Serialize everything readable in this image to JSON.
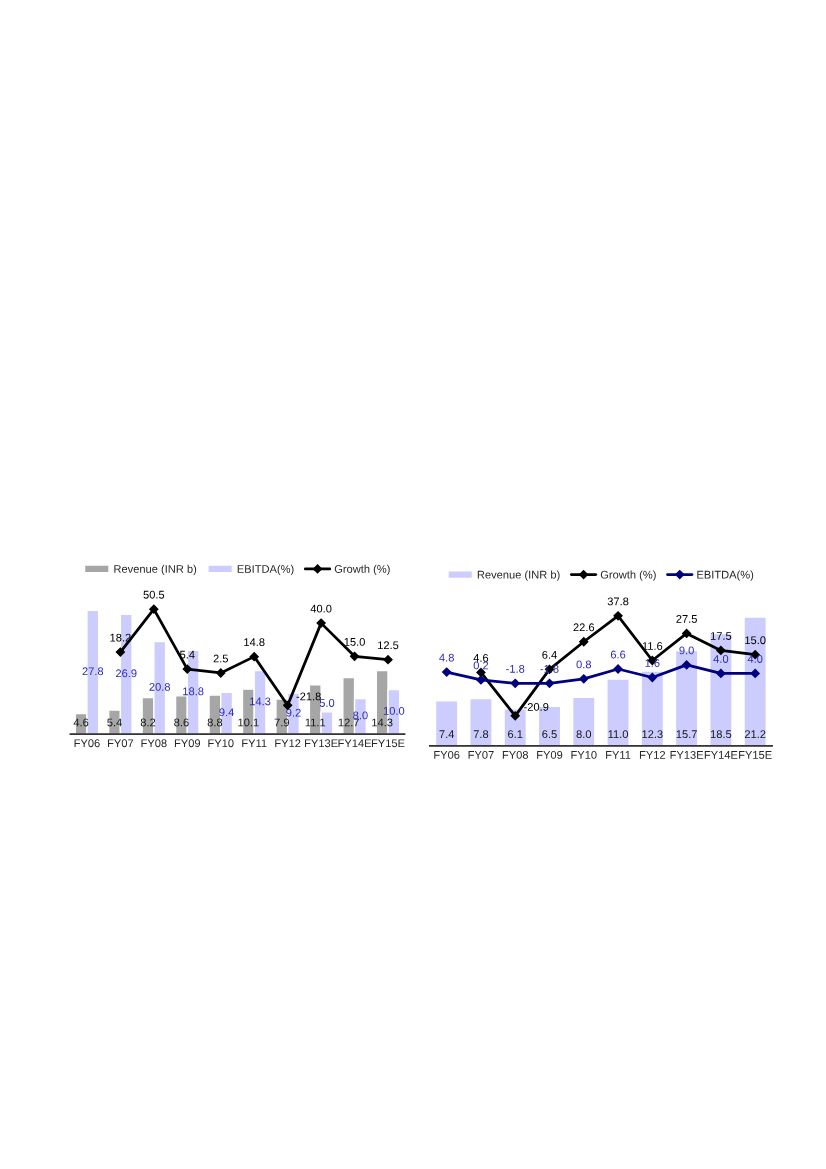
{
  "chart_data": [
    {
      "type": "bar",
      "categories": [
        "FY06",
        "FY07",
        "FY08",
        "FY09",
        "FY10",
        "FY11",
        "FY12",
        "FY13E",
        "FY14E",
        "FY15E"
      ],
      "legend": "top",
      "marker": "diamond",
      "tick_labels": "x",
      "grid": false,
      "series": [
        {
          "name": "Revenue (INR b)",
          "color": "#a6a6a6",
          "values": [
            4.6,
            5.4,
            8.2,
            8.6,
            8.8,
            10.1,
            7.9,
            11.1,
            12.7,
            14.3
          ],
          "value_labels": [
            "4.6",
            "5.4",
            "8.2",
            "8.6",
            "8.8",
            "10.1",
            "7.9",
            "11.1",
            "12.7",
            "14.3"
          ]
        },
        {
          "name": "EBITDA(%)",
          "color": "#ccccff",
          "values": [
            27.8,
            26.9,
            20.8,
            18.8,
            9.4,
            14.3,
            9.2,
            5.0,
            8.0,
            10.0
          ],
          "value_labels": [
            "27.8",
            "26.9",
            "20.8",
            "18.8",
            "9.4",
            "14.3",
            "9.2",
            "5.0",
            "8.0",
            "10.0"
          ]
        },
        {
          "name": "Growth (%)",
          "type": "line",
          "axis": "y2",
          "color": "#000000",
          "values": [
            null,
            18.2,
            50.5,
            5.4,
            2.5,
            14.8,
            -21.8,
            40.0,
            15.0,
            12.5
          ],
          "value_labels": [
            null,
            "18.2",
            "50.5",
            "5.4",
            "2.5",
            "14.8",
            "-21.8",
            "40.0",
            "15.0",
            "12.5"
          ]
        }
      ]
    },
    {
      "type": "bar",
      "categories": [
        "FY06",
        "FY07",
        "FY08",
        "FY09",
        "FY10",
        "FY11",
        "FY12",
        "FY13E",
        "FY14E",
        "FY15E"
      ],
      "legend": "top",
      "marker": "diamond",
      "tick_labels": "x",
      "grid": false,
      "series": [
        {
          "name": "Revenue (INR b)",
          "color": "#ccccff",
          "values": [
            7.4,
            7.8,
            6.1,
            6.5,
            8.0,
            11.0,
            12.3,
            15.7,
            18.5,
            21.2
          ],
          "value_labels": [
            "7.4",
            "7.8",
            "6.1",
            "6.5",
            "8.0",
            "11.0",
            "12.3",
            "15.7",
            "18.5",
            "21.2"
          ]
        },
        {
          "name": "Growth (%)",
          "type": "line",
          "axis": "y2",
          "color": "#000000",
          "values": [
            null,
            4.6,
            -20.9,
            6.4,
            22.6,
            37.8,
            11.6,
            27.5,
            17.5,
            15.0
          ],
          "value_labels": [
            null,
            "4.6",
            "-20.9",
            "6.4",
            "22.6",
            "37.8",
            "11.6",
            "27.5",
            "17.5",
            "15.0"
          ]
        },
        {
          "name": "EBITDA(%)",
          "type": "line",
          "axis": "y2",
          "color": "#000080",
          "values": [
            4.8,
            0.2,
            -1.8,
            -1.8,
            0.8,
            6.6,
            1.6,
            9.0,
            4.0,
            4.0
          ],
          "value_labels": [
            "4.8",
            "0.2",
            "-1.8",
            "-1.8",
            "0.8",
            "6.6",
            "1.6",
            "9.0",
            "4.0",
            "4.0"
          ]
        }
      ]
    }
  ]
}
